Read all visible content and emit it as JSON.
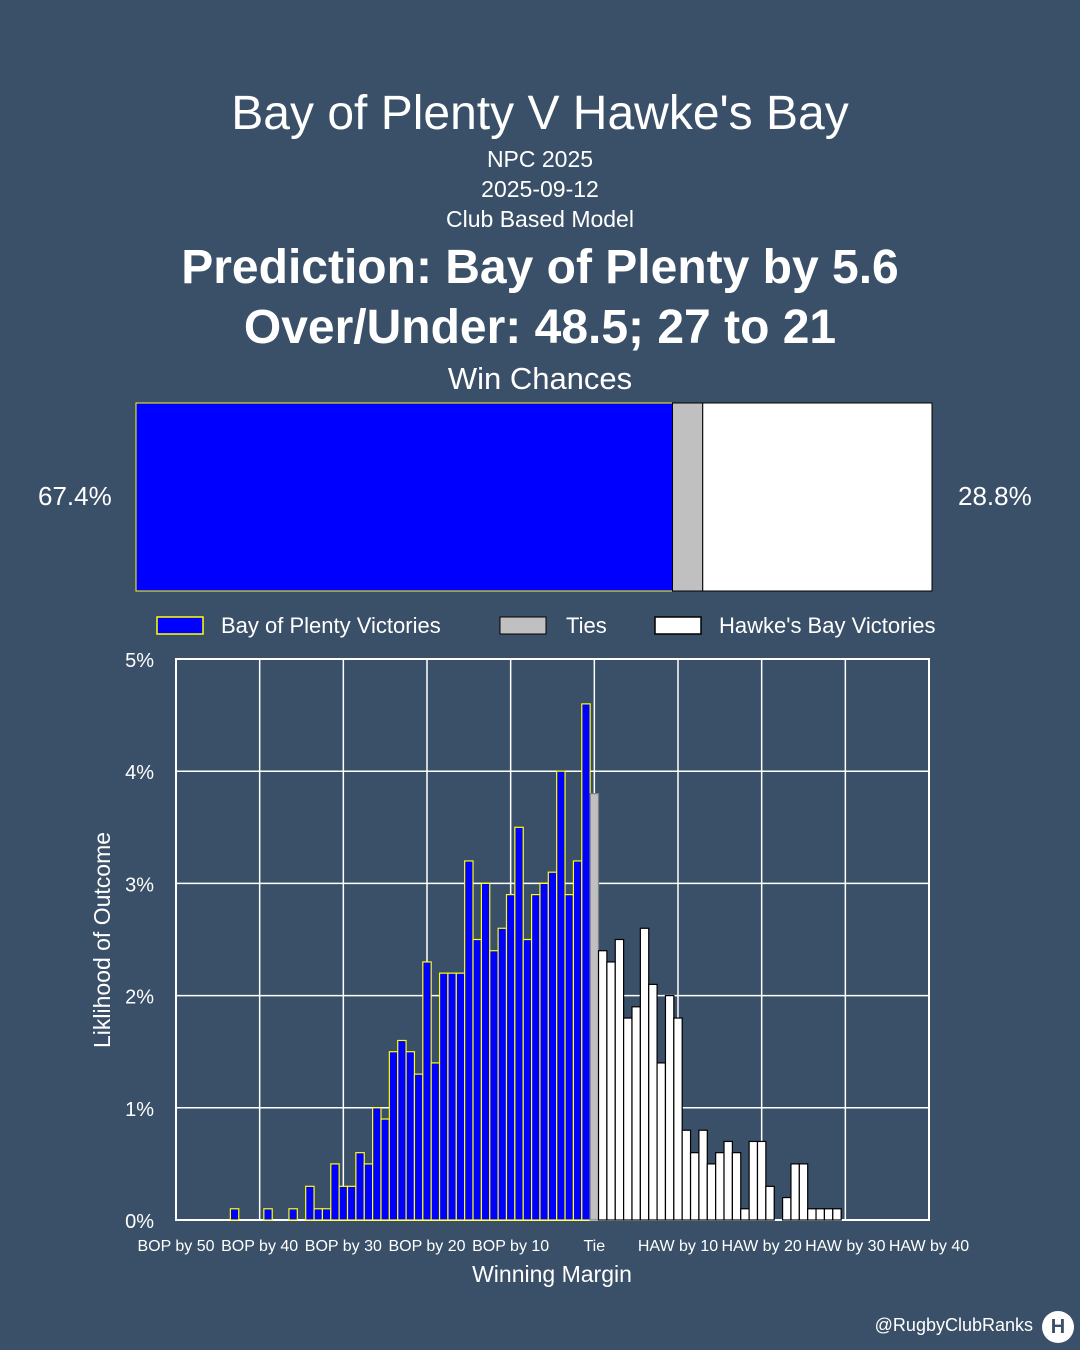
{
  "header": {
    "title": "Bay of Plenty V Hawke's Bay",
    "competition": "NPC 2025",
    "date": "2025-09-12",
    "model": "Club Based Model",
    "prediction": "Prediction: Bay of Plenty by 5.6",
    "over_under": "Over/Under: 48.5; 27 to 21",
    "win_chances_title": "Win Chances"
  },
  "win_chances": {
    "home_pct_label": "67.4%",
    "away_pct_label": "28.8%",
    "home": 67.4,
    "tie": 3.8,
    "away": 28.8
  },
  "legend": {
    "home_label": "Bay of Plenty Victories",
    "tie_label": "Ties",
    "away_label": "Hawke's Bay Victories"
  },
  "colors": {
    "background": "#3a5068",
    "home_fill": "#0000ff",
    "home_edge": "#ffff00",
    "tie_fill": "#c0c0c0",
    "away_fill": "#ffffff",
    "away_edge": "#000000"
  },
  "footer": {
    "handle": "@RugbyClubRanks",
    "logo_glyph": "H"
  },
  "chart_data": {
    "type": "bar",
    "xlabel": "Winning Margin",
    "ylabel": "Liklihood of Outcome",
    "ylim": [
      0,
      5
    ],
    "xlim": [
      -50,
      40
    ],
    "grid": true,
    "yticks": [
      "0%",
      "1%",
      "2%",
      "3%",
      "4%",
      "5%"
    ],
    "xticks": [
      {
        "x": -50,
        "label": "BOP by 50"
      },
      {
        "x": -40,
        "label": "BOP by 40"
      },
      {
        "x": -30,
        "label": "BOP by 30"
      },
      {
        "x": -20,
        "label": "BOP by 20"
      },
      {
        "x": -10,
        "label": "BOP by 10"
      },
      {
        "x": 0,
        "label": "Tie"
      },
      {
        "x": 10,
        "label": "HAW by 10"
      },
      {
        "x": 20,
        "label": "HAW by 20"
      },
      {
        "x": 30,
        "label": "HAW by 30"
      },
      {
        "x": 40,
        "label": "HAW by 40"
      }
    ],
    "series": [
      {
        "name": "Bay of Plenty Victories",
        "x": [
          -43,
          -39,
          -36,
          -34,
          -33,
          -32,
          -31,
          -30,
          -29,
          -28,
          -27,
          -26,
          -25,
          -24,
          -23,
          -22,
          -21,
          -20,
          -19,
          -18,
          -17,
          -16,
          -15,
          -14,
          -13,
          -12,
          -11,
          -10,
          -9,
          -8,
          -7,
          -6,
          -5,
          -4,
          -3,
          -2,
          -1
        ],
        "values": [
          0.1,
          0.1,
          0.1,
          0.3,
          0.1,
          0.1,
          0.5,
          0.3,
          0.3,
          0.6,
          0.5,
          1.0,
          0.9,
          1.5,
          1.6,
          1.5,
          1.3,
          2.3,
          1.4,
          2.2,
          2.2,
          2.2,
          3.2,
          2.5,
          3.0,
          2.4,
          2.6,
          2.9,
          3.5,
          2.5,
          2.9,
          3.0,
          3.1,
          4.0,
          2.9,
          3.2,
          4.6
        ]
      },
      {
        "name": "Ties",
        "x": [
          0
        ],
        "values": [
          3.8
        ]
      },
      {
        "name": "Hawke's Bay Victories",
        "x": [
          1,
          2,
          3,
          4,
          5,
          6,
          7,
          8,
          9,
          10,
          11,
          12,
          13,
          14,
          15,
          16,
          17,
          18,
          19,
          20,
          21,
          22,
          23,
          24,
          25,
          26,
          27,
          28,
          29
        ],
        "values": [
          2.4,
          2.3,
          2.5,
          1.8,
          1.9,
          2.6,
          2.1,
          1.4,
          2.0,
          1.8,
          0.8,
          0.6,
          0.8,
          0.5,
          0.6,
          0.7,
          0.6,
          0.1,
          0.7,
          0.7,
          0.3,
          0.0,
          0.2,
          0.5,
          0.5,
          0.1,
          0.1,
          0.1,
          0.1
        ]
      }
    ]
  }
}
